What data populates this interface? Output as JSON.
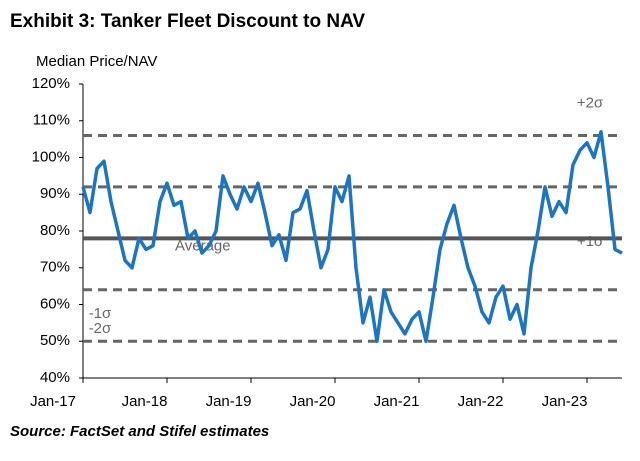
{
  "chart_data": {
    "type": "line",
    "title": "Exhibit 3: Tanker Fleet Discount to NAV",
    "y_axis_label": "Median Price/NAV",
    "source": "Source: FactSet and Stifel estimates",
    "categories": [
      "Jan-17",
      null,
      null,
      null,
      null,
      null,
      null,
      null,
      null,
      null,
      null,
      null,
      "Jan-18",
      null,
      null,
      null,
      null,
      null,
      null,
      null,
      null,
      null,
      null,
      null,
      "Jan-19",
      null,
      null,
      null,
      null,
      null,
      null,
      null,
      null,
      null,
      null,
      null,
      "Jan-20",
      null,
      null,
      null,
      null,
      null,
      null,
      null,
      null,
      null,
      null,
      null,
      "Jan-21",
      null,
      null,
      null,
      null,
      null,
      null,
      null,
      null,
      null,
      null,
      null,
      "Jan-22",
      null,
      null,
      null,
      null,
      null,
      null,
      null,
      null,
      null,
      null,
      null,
      "Jan-23",
      null,
      null,
      null,
      null,
      null
    ],
    "series": [
      {
        "name": "Median Price/NAV",
        "color": "#1b75c4",
        "values": [
          92,
          85,
          97,
          99,
          88,
          80,
          72,
          70,
          78,
          75,
          76,
          88,
          93,
          87,
          88,
          78,
          80,
          74,
          76,
          80,
          95,
          90,
          86,
          92,
          88,
          93,
          85,
          76,
          79,
          72,
          85,
          86,
          91,
          80,
          70,
          75,
          92,
          88,
          95,
          70,
          55,
          62,
          50,
          64,
          58,
          55,
          52,
          56,
          58,
          50,
          62,
          75,
          82,
          87,
          78,
          70,
          65,
          58,
          55,
          62,
          65,
          56,
          60,
          52,
          70,
          80,
          92,
          84,
          88,
          85,
          98,
          102,
          104,
          100,
          107,
          92,
          75,
          74
        ]
      }
    ],
    "reference_lines": [
      {
        "label": "+2σ",
        "value": 106
      },
      {
        "label": "+1σ",
        "value": 92
      },
      {
        "label": "Average",
        "value": 78
      },
      {
        "label": "-1σ",
        "value": 64
      },
      {
        "label": "-2σ",
        "value": 50
      }
    ],
    "ylim": [
      40,
      120
    ],
    "yticks": [
      {
        "value": 40,
        "label": "40%"
      },
      {
        "value": 50,
        "label": "50%"
      },
      {
        "value": 60,
        "label": "60%"
      },
      {
        "value": 70,
        "label": "70%"
      },
      {
        "value": 80,
        "label": "80%"
      },
      {
        "value": 90,
        "label": "90%"
      },
      {
        "value": 100,
        "label": "100%"
      },
      {
        "value": 110,
        "label": "110%"
      },
      {
        "value": 120,
        "label": "120%"
      }
    ]
  }
}
